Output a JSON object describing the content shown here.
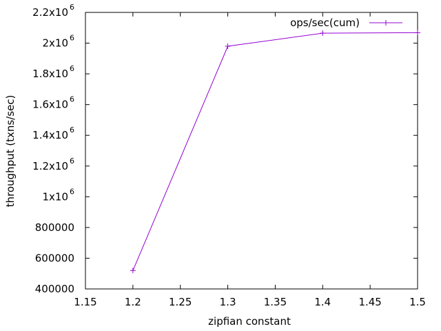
{
  "chart_data": {
    "type": "line",
    "title": "",
    "xlabel": "zipfian constant",
    "ylabel": "throughput (txns/sec)",
    "xlim": [
      1.15,
      1.5
    ],
    "ylim": [
      400000,
      2200000
    ],
    "x_ticks": [
      1.15,
      1.2,
      1.25,
      1.3,
      1.35,
      1.4,
      1.45,
      1.5
    ],
    "x_tick_labels": [
      "1.15",
      "1.2",
      "1.25",
      "1.3",
      "1.35",
      "1.4",
      "1.45",
      "1.5"
    ],
    "y_ticks": [
      400000,
      600000,
      800000,
      1000000,
      1200000,
      1400000,
      1600000,
      1800000,
      2000000,
      2200000
    ],
    "y_tick_labels": [
      {
        "base": "400000",
        "exp": ""
      },
      {
        "base": "600000",
        "exp": ""
      },
      {
        "base": "800000",
        "exp": ""
      },
      {
        "base": "1x10",
        "exp": "6"
      },
      {
        "base": "1.2x10",
        "exp": "6"
      },
      {
        "base": "1.4x10",
        "exp": "6"
      },
      {
        "base": "1.6x10",
        "exp": "6"
      },
      {
        "base": "1.8x10",
        "exp": "6"
      },
      {
        "base": "2x10",
        "exp": "6"
      },
      {
        "base": "2.2x10",
        "exp": "6"
      }
    ],
    "grid": false,
    "legend_position": "top-right",
    "series": [
      {
        "name": "ops/sec(cum)",
        "color": "#9400d3",
        "marker": "plus",
        "x": [
          1.2,
          1.3,
          1.4,
          1.5
        ],
        "y": [
          520000,
          1980000,
          2065000,
          2068000
        ]
      }
    ]
  }
}
